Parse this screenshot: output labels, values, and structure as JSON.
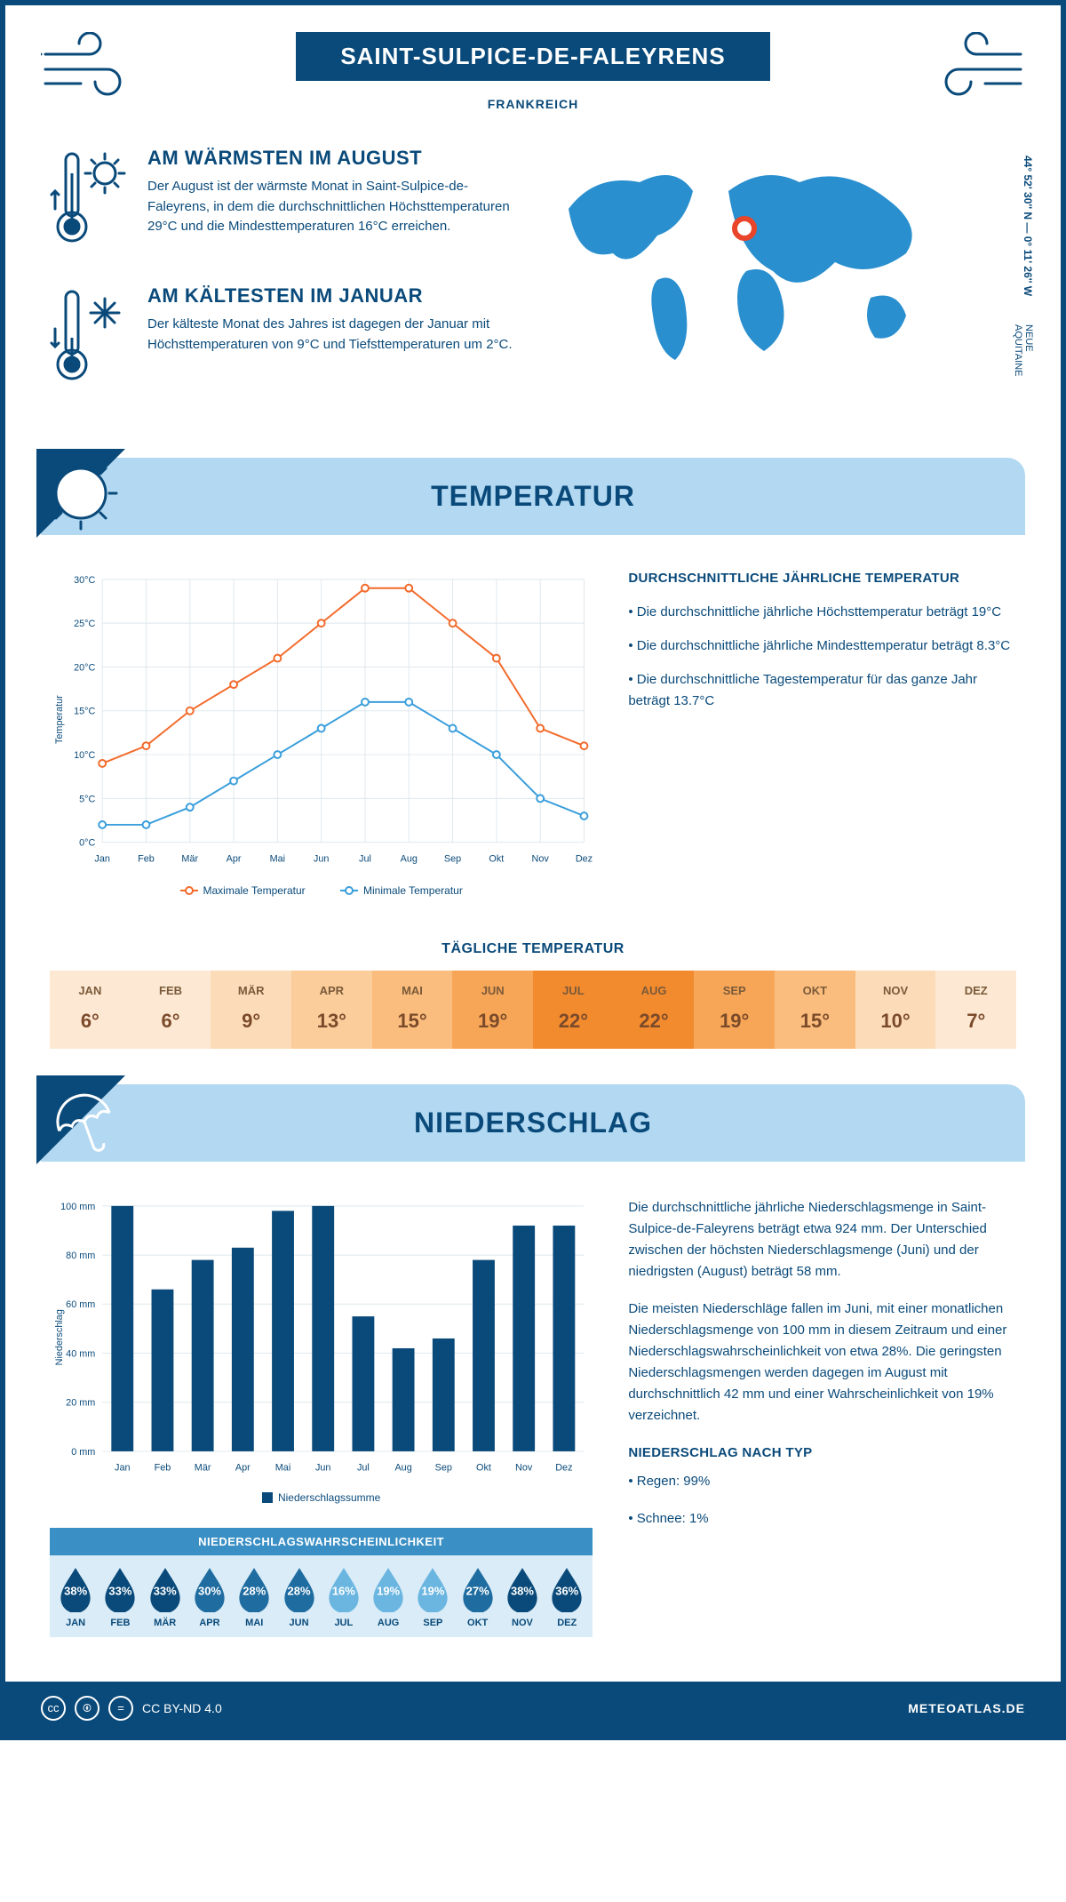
{
  "header": {
    "title": "SAINT-SULPICE-DE-FALEYRENS",
    "country": "FRANKREICH"
  },
  "coords": "44° 52' 30'' N — 0° 11' 26'' W",
  "region": "NEUE AQUITAINE",
  "facts": {
    "warm": {
      "title": "AM WÄRMSTEN IM AUGUST",
      "text": "Der August ist der wärmste Monat in Saint-Sulpice-de-Faleyrens, in dem die durchschnittlichen Höchsttemperaturen 29°C und die Mindesttemperaturen 16°C erreichen."
    },
    "cold": {
      "title": "AM KÄLTESTEN IM JANUAR",
      "text": "Der kälteste Monat des Jahres ist dagegen der Januar mit Höchsttemperaturen von 9°C und Tiefsttemperaturen um 2°C."
    }
  },
  "sections": {
    "temperature": "TEMPERATUR",
    "precipitation": "NIEDERSCHLAG"
  },
  "temp_chart": {
    "months": [
      "Jan",
      "Feb",
      "Mär",
      "Apr",
      "Mai",
      "Jun",
      "Jul",
      "Aug",
      "Sep",
      "Okt",
      "Nov",
      "Dez"
    ],
    "max_series": [
      9,
      11,
      15,
      18,
      21,
      25,
      29,
      29,
      25,
      21,
      13,
      11
    ],
    "min_series": [
      2,
      2,
      4,
      7,
      10,
      13,
      16,
      16,
      13,
      10,
      5,
      3
    ],
    "max_color": "#f26a2a",
    "min_color": "#3a9edb",
    "grid_color": "#dfe8ee",
    "axis_color": "#0a4a7a",
    "ylim": [
      0,
      30
    ],
    "ytick_step": 5,
    "ylabel": "Temperatur",
    "legend_max": "Maximale Temperatur",
    "legend_min": "Minimale Temperatur"
  },
  "temp_text": {
    "heading": "DURCHSCHNITTLICHE JÄHRLICHE TEMPERATUR",
    "p1": "• Die durchschnittliche jährliche Höchsttemperatur beträgt 19°C",
    "p2": "• Die durchschnittliche jährliche Mindesttemperatur beträgt 8.3°C",
    "p3": "• Die durchschnittliche Tagestemperatur für das ganze Jahr beträgt 13.7°C"
  },
  "daily_temp": {
    "title": "TÄGLICHE TEMPERATUR",
    "months": [
      "JAN",
      "FEB",
      "MÄR",
      "APR",
      "MAI",
      "JUN",
      "JUL",
      "AUG",
      "SEP",
      "OKT",
      "NOV",
      "DEZ"
    ],
    "values": [
      "6°",
      "6°",
      "9°",
      "13°",
      "15°",
      "19°",
      "22°",
      "22°",
      "19°",
      "15°",
      "10°",
      "7°"
    ],
    "colors": [
      "#fde9d3",
      "#fde9d3",
      "#fcdcb8",
      "#fbcd9b",
      "#fabd7d",
      "#f7a657",
      "#f28a2e",
      "#f28a2e",
      "#f7a657",
      "#fabd7d",
      "#fcdcb8",
      "#fde9d3"
    ]
  },
  "precip_chart": {
    "months": [
      "Jan",
      "Feb",
      "Mär",
      "Apr",
      "Mai",
      "Jun",
      "Jul",
      "Aug",
      "Sep",
      "Okt",
      "Nov",
      "Dez"
    ],
    "values": [
      100,
      66,
      78,
      83,
      98,
      100,
      55,
      42,
      46,
      78,
      92,
      92
    ],
    "bar_color": "#0a4a7a",
    "grid_color": "#dfe8ee",
    "ylim": [
      0,
      100
    ],
    "ytick_step": 20,
    "ylabel": "Niederschlag",
    "legend": "Niederschlagssumme"
  },
  "precip_text": {
    "p1": "Die durchschnittliche jährliche Niederschlagsmenge in Saint-Sulpice-de-Faleyrens beträgt etwa 924 mm. Der Unterschied zwischen der höchsten Niederschlagsmenge (Juni) und der niedrigsten (August) beträgt 58 mm.",
    "p2": "Die meisten Niederschläge fallen im Juni, mit einer monatlichen Niederschlagsmenge von 100 mm in diesem Zeitraum und einer Niederschlagswahrscheinlichkeit von etwa 28%. Die geringsten Niederschlagsmengen werden dagegen im August mit durchschnittlich 42 mm und einer Wahrscheinlichkeit von 19% verzeichnet.",
    "type_heading": "NIEDERSCHLAG NACH TYP",
    "type_rain": "• Regen: 99%",
    "type_snow": "• Schnee: 1%"
  },
  "probability": {
    "title": "NIEDERSCHLAGSWAHRSCHEINLICHKEIT",
    "months": [
      "JAN",
      "FEB",
      "MÄR",
      "APR",
      "MAI",
      "JUN",
      "JUL",
      "AUG",
      "SEP",
      "OKT",
      "NOV",
      "DEZ"
    ],
    "values": [
      "38%",
      "33%",
      "33%",
      "30%",
      "28%",
      "28%",
      "16%",
      "19%",
      "19%",
      "27%",
      "38%",
      "36%"
    ],
    "colors": [
      "#0a4a7a",
      "#0a4a7a",
      "#0a4a7a",
      "#1f6ca1",
      "#1f6ca1",
      "#1f6ca1",
      "#6bb6e0",
      "#6bb6e0",
      "#6bb6e0",
      "#1f6ca1",
      "#0a4a7a",
      "#0a4a7a"
    ]
  },
  "footer": {
    "license": "CC BY-ND 4.0",
    "site": "METEOATLAS.DE"
  }
}
